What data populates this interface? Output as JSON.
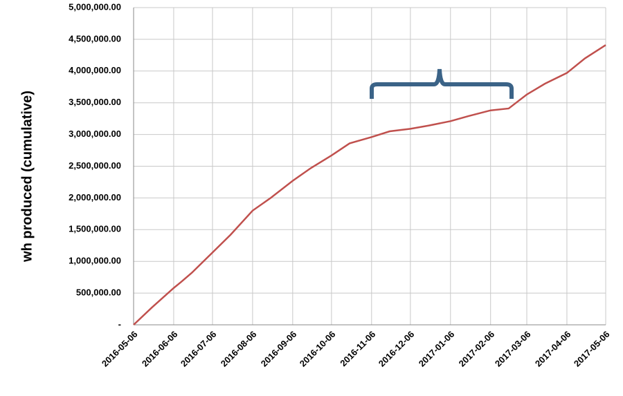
{
  "chart_data": {
    "type": "line",
    "y_label": "wh produced (cumulative)",
    "x": [
      "2016-05-06",
      "2016-05-20",
      "2016-06-06",
      "2016-06-12",
      "2016-06-20",
      "2016-07-06",
      "2016-07-20",
      "2016-08-06",
      "2016-08-20",
      "2016-09-06",
      "2016-09-20",
      "2016-10-06",
      "2016-10-20",
      "2016-11-06",
      "2016-11-20",
      "2016-12-06",
      "2016-12-20",
      "2017-01-06",
      "2017-01-20",
      "2017-02-06",
      "2017-02-20",
      "2017-03-06",
      "2017-03-20",
      "2017-04-06",
      "2017-04-20",
      "2017-05-06"
    ],
    "series": [
      {
        "name": "wh produced",
        "color": "#c0504d",
        "values": [
          0,
          270000,
          580000,
          680000,
          820000,
          1140000,
          1420000,
          1800000,
          2000000,
          2270000,
          2470000,
          2670000,
          2860000,
          2960000,
          3050000,
          3090000,
          3140000,
          3210000,
          3290000,
          3380000,
          3410000,
          3630000,
          3800000,
          3970000,
          4200000,
          4410000
        ]
      }
    ],
    "xlim": [
      "2016-05-06",
      "2017-05-06"
    ],
    "xticks": [
      "2016-05-06",
      "2016-06-06",
      "2016-07-06",
      "2016-08-06",
      "2016-09-06",
      "2016-10-06",
      "2016-11-06",
      "2016-12-06",
      "2017-01-06",
      "2017-02-06",
      "2017-03-06",
      "2017-04-06",
      "2017-05-06"
    ],
    "ylim": [
      0,
      5000000
    ],
    "yticks": [
      {
        "value": 0,
        "label": "-"
      },
      {
        "value": 500000,
        "label": "500,000.00"
      },
      {
        "value": 1000000,
        "label": "1,000,000.00"
      },
      {
        "value": 1500000,
        "label": "1,500,000.00"
      },
      {
        "value": 2000000,
        "label": "2,000,000.00"
      },
      {
        "value": 2500000,
        "label": "2,500,000.00"
      },
      {
        "value": 3000000,
        "label": "3,000,000.00"
      },
      {
        "value": 3500000,
        "label": "3,500,000.00"
      },
      {
        "value": 4000000,
        "label": "4,000,000.00"
      },
      {
        "value": 4500000,
        "label": "4,500,000.00"
      },
      {
        "value": 5000000,
        "label": "5,000,000.00"
      }
    ],
    "grid": true
  }
}
